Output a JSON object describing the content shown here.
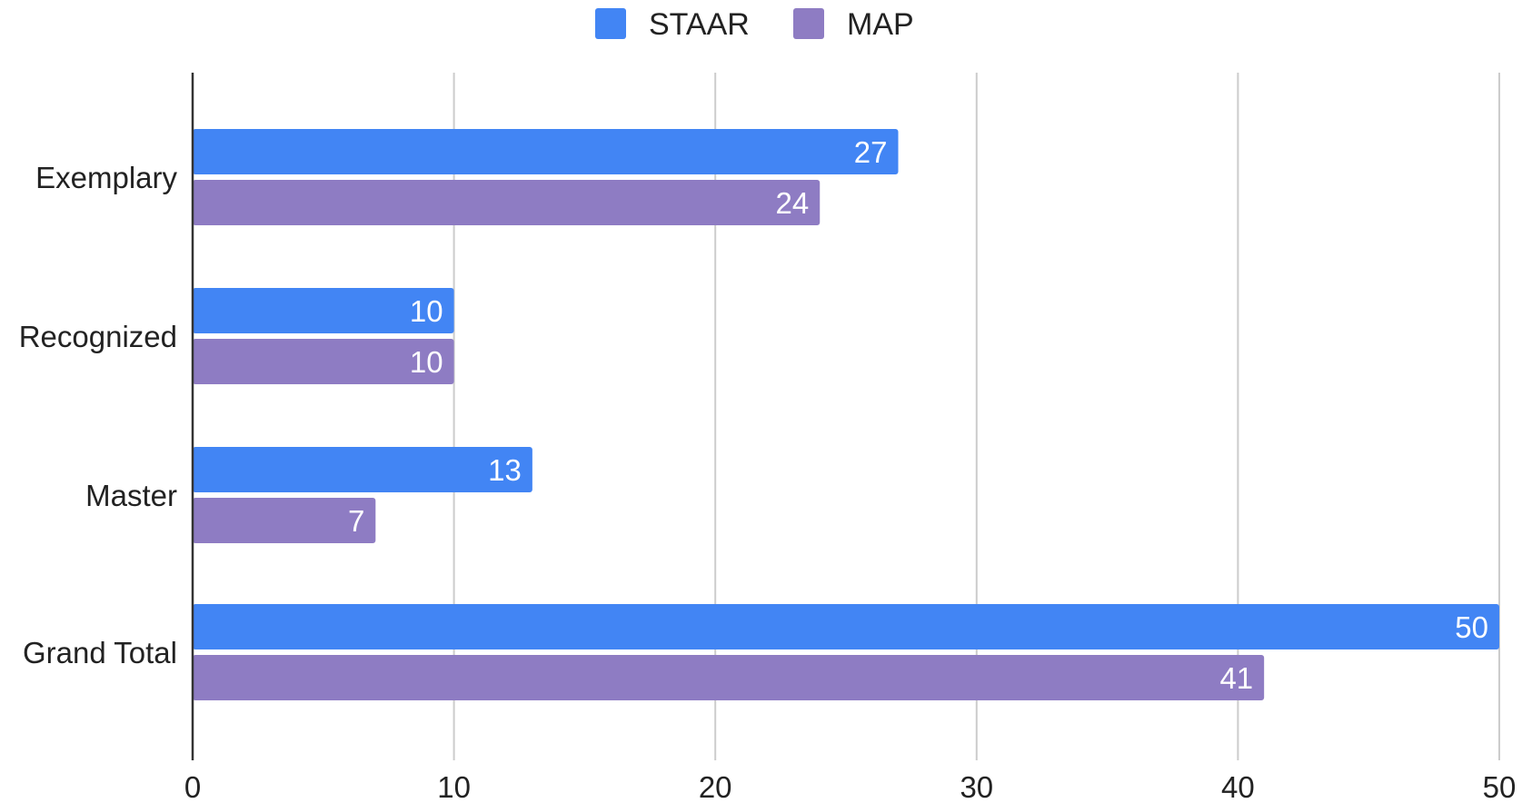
{
  "chart_data": {
    "type": "bar",
    "orientation": "horizontal",
    "categories": [
      "Exemplary",
      "Recognized",
      "Master",
      "Grand Total"
    ],
    "series": [
      {
        "name": "STAAR",
        "color": "#4285f4",
        "values": [
          27,
          10,
          13,
          50
        ]
      },
      {
        "name": "MAP",
        "color": "#8e7cc3",
        "values": [
          24,
          10,
          7,
          41
        ]
      }
    ],
    "xlim": [
      0,
      50
    ],
    "xticks": [
      0,
      10,
      20,
      30,
      40,
      50
    ],
    "xtick_labels": [
      "0",
      "10",
      "20",
      "30",
      "40",
      "50"
    ],
    "grid": true,
    "legend_position": "top-center",
    "data_labels": true
  }
}
